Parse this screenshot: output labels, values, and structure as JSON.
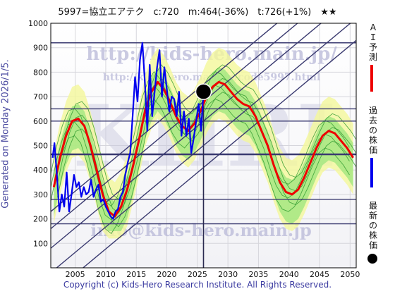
{
  "header": {
    "title": "5997=協立エアテク　c:720　m:464(-36%)　t:726(+1%)　★★"
  },
  "side": {
    "generated": "Generated on Monday 2026/1/5.",
    "legend_ai": "ＡＩ予測",
    "legend_past": "過去の株価",
    "legend_latest": "最新の株価"
  },
  "footer": {
    "copyright": "Copyright (c) Kids-Hero Research Institute. All Rights Reserved."
  },
  "watermark": {
    "url1": "http://kids-hero.main.jp/",
    "url2": "http://kids-hero.main.jp/code5997.html",
    "email": "info@kids-hero.main.jp",
    "big": "KHRI"
  },
  "chart_data": {
    "type": "line",
    "xlim": [
      2001,
      2051
    ],
    "ylim": [
      0,
      1000
    ],
    "x_ticks": [
      2005,
      2010,
      2015,
      2020,
      2025,
      2030,
      2035,
      2040,
      2045,
      2050
    ],
    "y_ticks": [
      100,
      200,
      300,
      400,
      500,
      600,
      700,
      800,
      900,
      1000
    ],
    "grid": true,
    "current": {
      "x": 2026.0,
      "y": 720,
      "label": "c:720"
    },
    "hlines": [
      920,
      650,
      600,
      464,
      280,
      180
    ],
    "current_vline": 2026.0,
    "band_diagonals": [
      [
        [
          2001,
          160
        ],
        [
          2051,
          1200
        ]
      ],
      [
        [
          2001,
          80
        ],
        [
          2051,
          1120
        ]
      ],
      [
        [
          2001,
          -20
        ],
        [
          2051,
          1020
        ]
      ],
      [
        [
          2001,
          230
        ],
        [
          2051,
          1270
        ]
      ],
      [
        [
          2001,
          -110
        ],
        [
          2051,
          930
        ]
      ]
    ],
    "series": [
      {
        "name": "ＡＩ予測",
        "color": "#ee0000",
        "x": [
          2001.5,
          2002.5,
          2003.5,
          2004.5,
          2005.5,
          2006.5,
          2007.5,
          2008.5,
          2009.5,
          2010.5,
          2011.5,
          2012.5,
          2013.5,
          2014.5,
          2015.5,
          2016.5,
          2017.5,
          2018.5,
          2019.5,
          2020.5,
          2021.5,
          2022.5,
          2023.5,
          2024.5,
          2025.5,
          2026.5,
          2027.5,
          2028.5,
          2029.5,
          2030.5,
          2031.5,
          2032.5,
          2033.5,
          2034.5,
          2035.5,
          2036.5,
          2037.5,
          2038.5,
          2039.5,
          2040.5,
          2041.5,
          2042.5,
          2043.5,
          2044.5,
          2045.5,
          2046.5,
          2047.5,
          2048.5,
          2049.5,
          2050.5
        ],
        "y": [
          330,
          450,
          540,
          600,
          610,
          580,
          500,
          400,
          300,
          230,
          210,
          250,
          320,
          420,
          530,
          650,
          720,
          760,
          730,
          680,
          620,
          580,
          560,
          590,
          640,
          700,
          740,
          760,
          750,
          720,
          690,
          670,
          660,
          620,
          560,
          500,
          420,
          350,
          310,
          300,
          320,
          370,
          430,
          490,
          540,
          560,
          550,
          520,
          490,
          450
        ]
      },
      {
        "name": "過去の株価",
        "color": "#0000ee",
        "x": [
          2001.3,
          2001.6,
          2002.0,
          2002.4,
          2002.8,
          2003.2,
          2003.6,
          2004.0,
          2004.4,
          2004.8,
          2005.2,
          2005.6,
          2006.0,
          2006.4,
          2006.8,
          2007.2,
          2007.6,
          2008.0,
          2008.4,
          2008.8,
          2009.2,
          2009.6,
          2010.0,
          2010.4,
          2010.8,
          2011.2,
          2011.6,
          2012.0,
          2012.4,
          2012.8,
          2013.2,
          2013.6,
          2014.0,
          2014.4,
          2014.8,
          2015.2,
          2015.6,
          2016.0,
          2016.4,
          2016.8,
          2017.2,
          2017.6,
          2018.0,
          2018.4,
          2018.8,
          2019.2,
          2019.6,
          2020.0,
          2020.4,
          2020.8,
          2021.2,
          2021.6,
          2022.0,
          2022.4,
          2022.8,
          2023.2,
          2023.6,
          2024.0,
          2024.4,
          2024.8,
          2025.2,
          2025.6,
          2026.0
        ],
        "y": [
          450,
          510,
          380,
          230,
          300,
          250,
          390,
          230,
          300,
          380,
          330,
          350,
          290,
          330,
          300,
          310,
          360,
          290,
          320,
          340,
          270,
          280,
          250,
          230,
          210,
          200,
          230,
          240,
          290,
          310,
          380,
          430,
          470,
          620,
          780,
          680,
          850,
          920,
          760,
          560,
          830,
          620,
          720,
          820,
          890,
          700,
          820,
          730,
          640,
          700,
          690,
          620,
          720,
          540,
          640,
          540,
          610,
          470,
          530,
          600,
          670,
          560,
          720
        ]
      }
    ]
  }
}
